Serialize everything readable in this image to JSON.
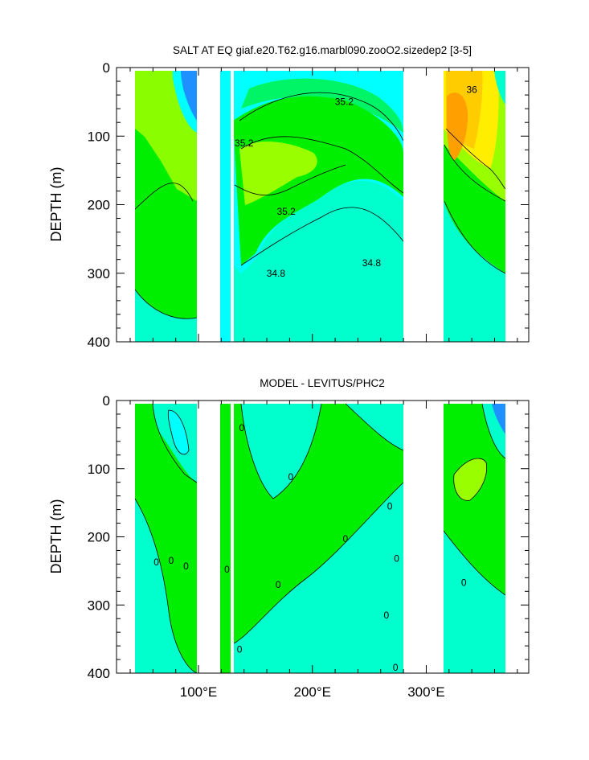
{
  "chart_data": [
    {
      "type": "heatmap",
      "title": "SALT AT EQ giaf.e20.T62.g16.marbl090.zooO2.sizedep2 [3-5]",
      "ylabel": "DEPTH (m)",
      "xlabel": "",
      "xlim": [
        28,
        390
      ],
      "ylim": [
        400,
        0
      ],
      "y_ticks": [
        0,
        100,
        200,
        300,
        400
      ],
      "y_tick_labels": [
        "0",
        "100",
        "200",
        "300",
        "400"
      ],
      "x_ticks": [
        100,
        200,
        300
      ],
      "x_tick_labels": [
        "100°E",
        "200°E",
        "300°E"
      ],
      "ocean_spans_lon": [
        [
          46,
          98
        ],
        [
          118,
          128
        ],
        [
          131,
          278
        ],
        [
          314,
          370
        ]
      ],
      "contour_labels": [
        {
          "text": "35.2",
          "lon": 140,
          "depth": 110
        },
        {
          "text": "35.2",
          "lon": 228,
          "depth": 50
        },
        {
          "text": "35.2",
          "lon": 177,
          "depth": 210
        },
        {
          "text": "34.8",
          "lon": 168,
          "depth": 300
        },
        {
          "text": "34.8",
          "lon": 252,
          "depth": 285
        },
        {
          "text": "36",
          "lon": 340,
          "depth": 32
        }
      ],
      "colors": {
        "very_low": "#1e90ff",
        "low": "#00ffff",
        "mid_low": "#00ffcc",
        "mid": "#00ee00",
        "mid_high": "#99ff00",
        "high": "#ffcc00",
        "very_high": "#ff8c00"
      }
    },
    {
      "type": "heatmap",
      "title": "MODEL - LEVITUS/PHC2",
      "ylabel": "DEPTH (m)",
      "xlabel": "",
      "xlim": [
        28,
        390
      ],
      "ylim": [
        400,
        0
      ],
      "y_ticks": [
        0,
        100,
        200,
        300,
        400
      ],
      "y_tick_labels": [
        "0",
        "100",
        "200",
        "300",
        "400"
      ],
      "x_ticks": [
        100,
        200,
        300
      ],
      "x_tick_labels": [
        "100°E",
        "200°E",
        "300°E"
      ],
      "ocean_spans_lon": [
        [
          46,
          98
        ],
        [
          118,
          128
        ],
        [
          131,
          278
        ],
        [
          314,
          370
        ]
      ],
      "contour_labels": [
        {
          "text": "0",
          "lon": 138,
          "depth": 40
        },
        {
          "text": "0",
          "lon": 181,
          "depth": 112
        },
        {
          "text": "0",
          "lon": 229,
          "depth": 203
        },
        {
          "text": "0",
          "lon": 268,
          "depth": 155
        },
        {
          "text": "0",
          "lon": 63,
          "depth": 237
        },
        {
          "text": "0",
          "lon": 76,
          "depth": 235
        },
        {
          "text": "0",
          "lon": 89,
          "depth": 243
        },
        {
          "text": "0",
          "lon": 125,
          "depth": 248
        },
        {
          "text": "0",
          "lon": 170,
          "depth": 270
        },
        {
          "text": "0",
          "lon": 274,
          "depth": 232
        },
        {
          "text": "0",
          "lon": 265,
          "depth": 315
        },
        {
          "text": "0",
          "lon": 136,
          "depth": 365
        },
        {
          "text": "0",
          "lon": 273,
          "depth": 392
        },
        {
          "text": "0",
          "lon": 333,
          "depth": 267
        }
      ],
      "colors": {
        "very_low": "#1e90ff",
        "low": "#00ffff",
        "mid_low": "#00ffcc",
        "mid": "#00ee00",
        "mid_high": "#99ff00",
        "high": "#ffcc00",
        "very_high": "#ff8c00"
      }
    }
  ]
}
